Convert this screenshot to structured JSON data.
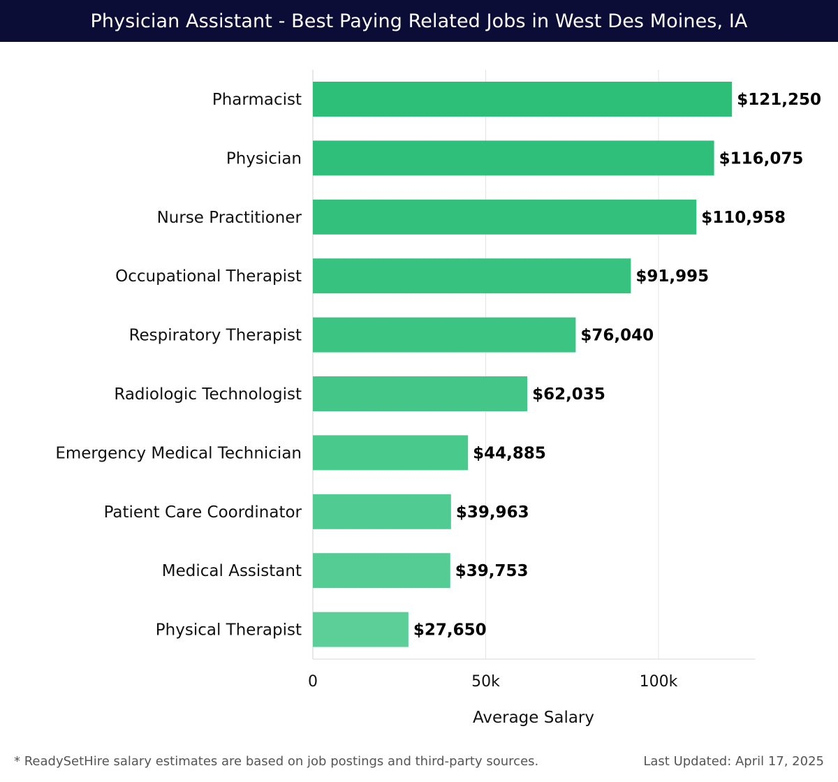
{
  "header": {
    "title": "Physician Assistant - Best Paying Related Jobs in West Des Moines, IA"
  },
  "chart_data": {
    "type": "bar",
    "orientation": "horizontal",
    "title": "Physician Assistant - Best Paying Related Jobs in West Des Moines, IA",
    "categories": [
      "Pharmacist",
      "Physician",
      "Nurse Practitioner",
      "Occupational Therapist",
      "Respiratory Therapist",
      "Radiologic Technologist",
      "Emergency Medical Technician",
      "Patient Care Coordinator",
      "Medical Assistant",
      "Physical Therapist"
    ],
    "values": [
      121250,
      116075,
      110958,
      91995,
      76040,
      62035,
      44885,
      39963,
      39753,
      27650
    ],
    "value_labels": [
      "$121,250",
      "$116,075",
      "$110,958",
      "$91,995",
      "$76,040",
      "$62,035",
      "$44,885",
      "$39,963",
      "$39,753",
      "$27,650"
    ],
    "xlabel": "Average Salary",
    "ylabel": "",
    "xlim": [
      0,
      128000
    ],
    "ticks": [
      0,
      50000,
      100000
    ],
    "tick_labels": [
      "0",
      "50k",
      "100k"
    ],
    "grid": true,
    "colors": [
      "#2dbe78",
      "#30bf7a",
      "#33c07c",
      "#37c27f",
      "#3cc483",
      "#43c688",
      "#4ac98c",
      "#50cb91",
      "#55cc94",
      "#5ccf98"
    ]
  },
  "footer": {
    "note": "* ReadySetHire salary estimates are based on job postings and third-party sources.",
    "updated": "Last Updated: April 17, 2025"
  }
}
